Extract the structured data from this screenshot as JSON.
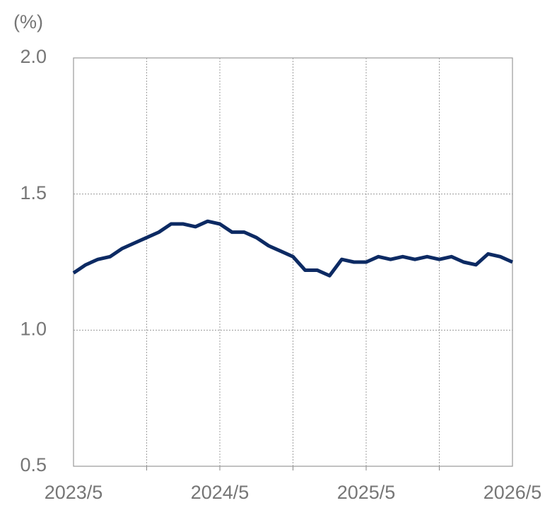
{
  "chart_data": {
    "type": "line",
    "unit_label": "(%)",
    "categories": [
      "2023/5",
      null,
      null,
      null,
      null,
      null,
      null,
      null,
      null,
      null,
      null,
      null,
      "2024/5",
      null,
      null,
      null,
      null,
      null,
      null,
      null,
      null,
      null,
      null,
      null,
      "2025/5",
      null,
      null,
      null,
      null,
      null,
      null,
      null,
      null,
      null,
      null,
      null,
      "2026/5"
    ],
    "series": [
      {
        "color": "#0c2a63",
        "values": [
          1.21,
          1.24,
          1.26,
          1.27,
          1.3,
          1.32,
          1.34,
          1.36,
          1.39,
          1.39,
          1.38,
          1.4,
          1.39,
          1.36,
          1.36,
          1.34,
          1.31,
          1.29,
          1.27,
          1.22,
          1.22,
          1.2,
          1.26,
          1.25,
          1.25,
          1.27,
          1.26,
          1.27,
          1.26,
          1.27,
          1.26,
          1.27,
          1.25,
          1.24,
          1.28,
          1.27,
          1.25
        ]
      }
    ],
    "ylim": [
      0.5,
      2.0
    ],
    "yticks": [
      {
        "value": 0.5,
        "label": "0.5"
      },
      {
        "value": 1.0,
        "label": "1.0"
      },
      {
        "value": 1.5,
        "label": "1.5"
      },
      {
        "value": 2.0,
        "label": "2.0"
      }
    ],
    "grid": true
  }
}
